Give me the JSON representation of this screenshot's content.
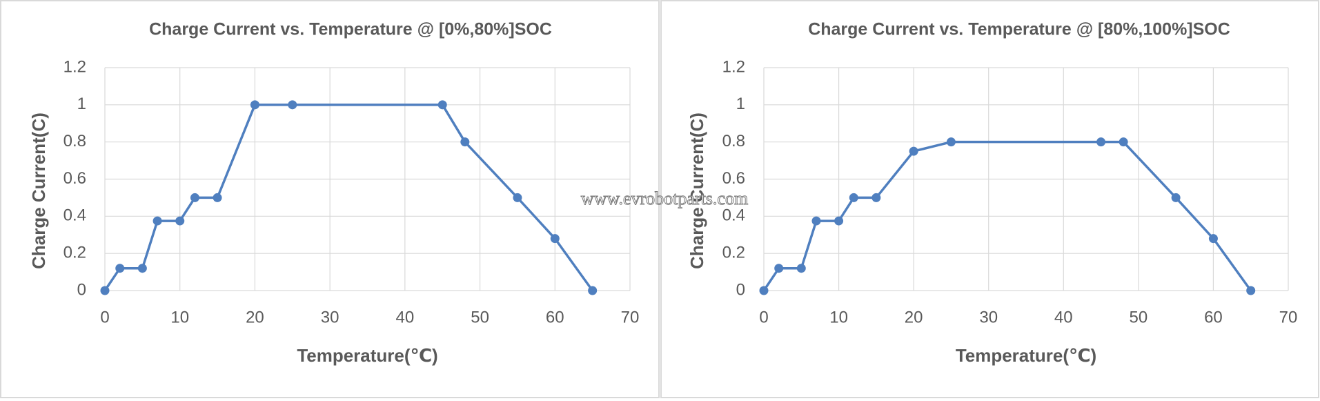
{
  "chart_data": [
    {
      "type": "line",
      "title": "Charge Current vs. Temperature @ [0%,80%]SOC",
      "xlabel": "Temperature(℃)",
      "ylabel": "Charge Current(C)",
      "x": [
        0,
        2,
        5,
        7,
        10,
        12,
        15,
        20,
        25,
        45,
        48,
        55,
        60,
        65
      ],
      "series": [
        {
          "color": "#4f7fbf",
          "values": [
            0,
            0.12,
            0.12,
            0.375,
            0.375,
            0.5,
            0.5,
            1,
            1,
            1,
            0.8,
            0.5,
            0.28,
            0
          ]
        }
      ],
      "xlim": [
        0,
        70
      ],
      "ylim": [
        0,
        1.2
      ],
      "xticks": [
        0,
        10,
        20,
        30,
        40,
        50,
        60,
        70
      ],
      "yticks": [
        0,
        0.2,
        0.4,
        0.6,
        0.8,
        1,
        1.2
      ],
      "grid": true
    },
    {
      "type": "line",
      "title": "Charge Current vs. Temperature @ [80%,100%]SOC",
      "xlabel": "Temperature(℃)",
      "ylabel": "Charge Current(C)",
      "x": [
        0,
        2,
        5,
        7,
        10,
        12,
        15,
        20,
        25,
        45,
        48,
        55,
        60,
        65
      ],
      "series": [
        {
          "color": "#4f7fbf",
          "values": [
            0,
            0.12,
            0.12,
            0.375,
            0.375,
            0.5,
            0.5,
            0.75,
            0.8,
            0.8,
            0.8,
            0.5,
            0.28,
            0
          ]
        }
      ],
      "xlim": [
        0,
        70
      ],
      "ylim": [
        0,
        1.2
      ],
      "xticks": [
        0,
        10,
        20,
        30,
        40,
        50,
        60,
        70
      ],
      "yticks": [
        0,
        0.2,
        0.4,
        0.6,
        0.8,
        1,
        1.2
      ],
      "grid": true
    }
  ],
  "watermark": "www.evrobotparts.com"
}
